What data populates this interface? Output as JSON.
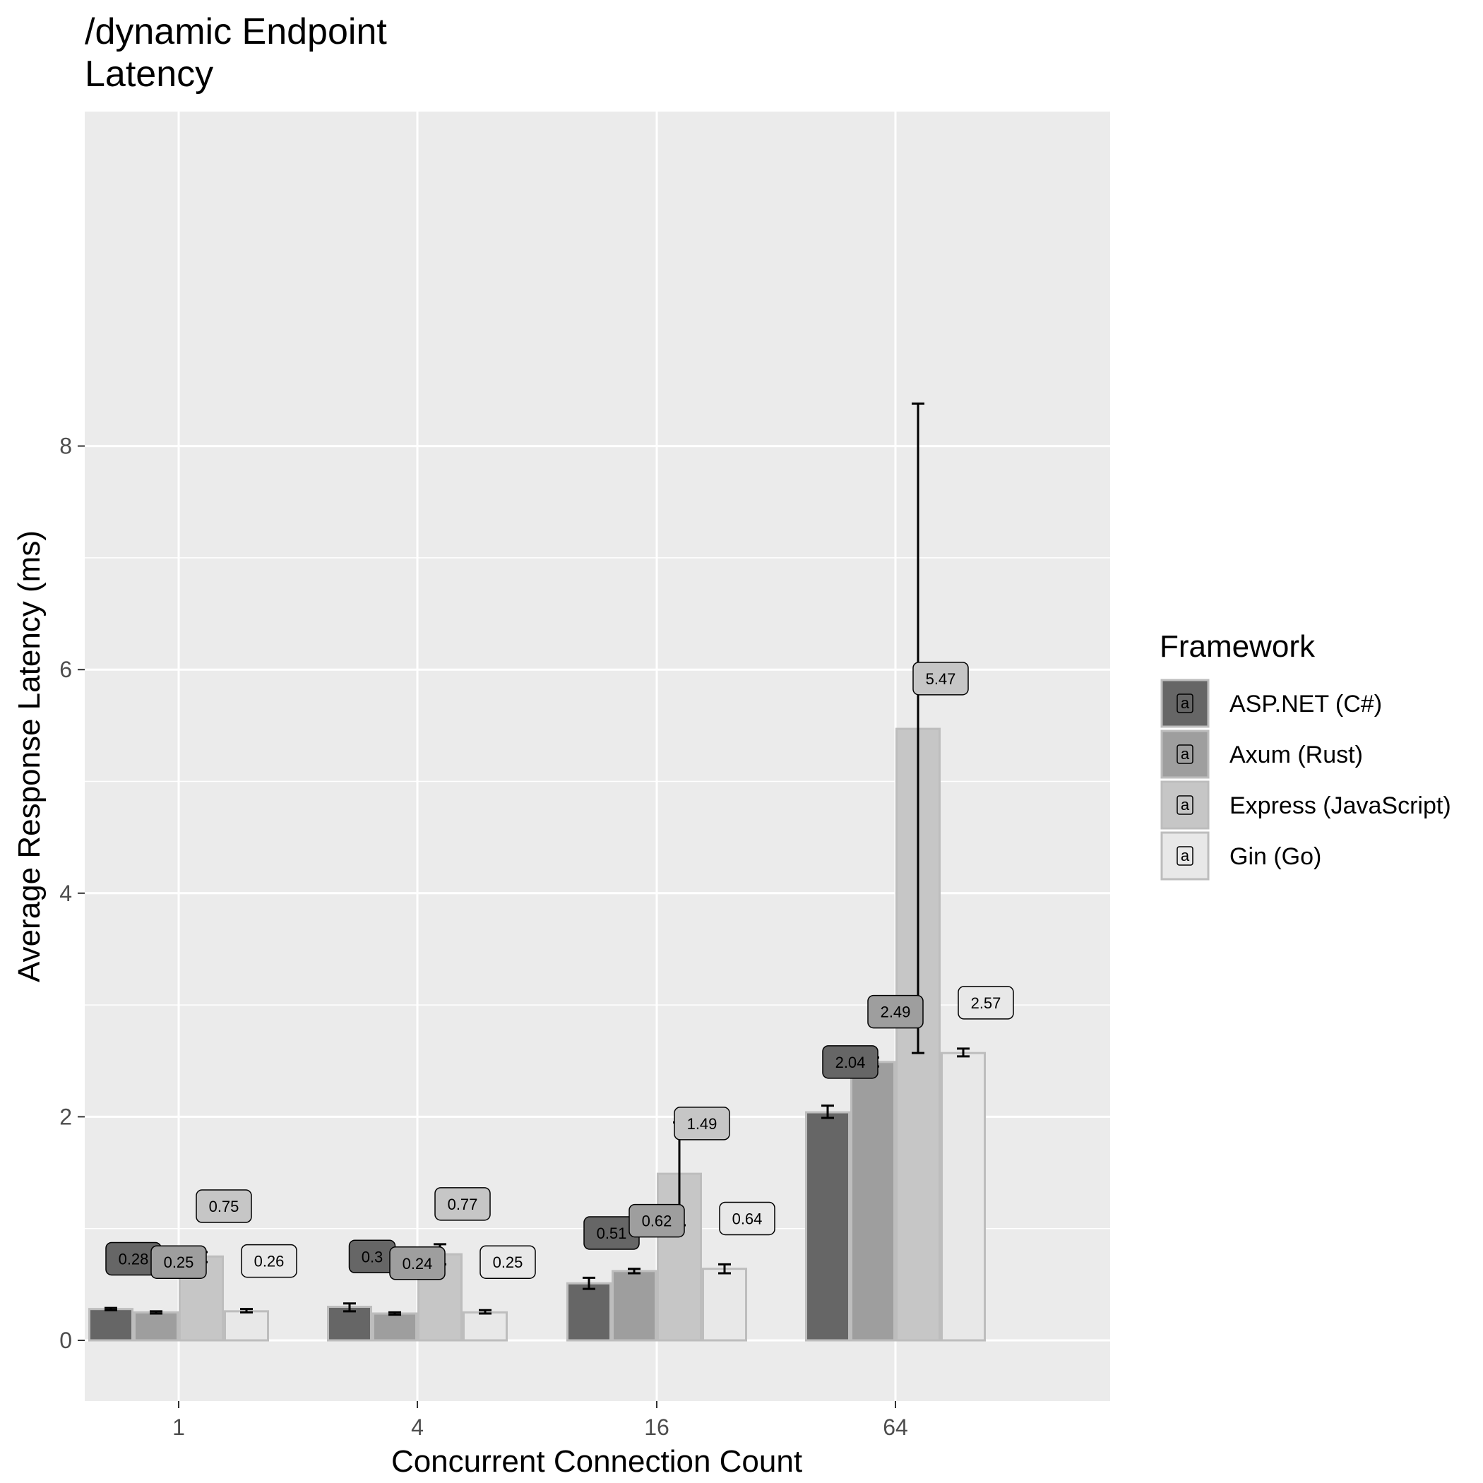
{
  "chart_data": {
    "type": "bar",
    "title_lines": [
      "/dynamic Endpoint",
      "Latency"
    ],
    "xlabel": "Concurrent Connection Count",
    "ylabel": "Average Response Latency (ms)",
    "categories": [
      "1",
      "4",
      "16",
      "64"
    ],
    "ylim": [
      -0.4,
      8.8
    ],
    "yticks": [
      0,
      2,
      4,
      6,
      8
    ],
    "grid": true,
    "legend": {
      "title": "Framework",
      "position": "right",
      "key_glyph": "a"
    },
    "series": [
      {
        "name": "ASP.NET (C#)",
        "color": "#666666",
        "values": [
          0.28,
          0.3,
          0.51,
          2.04
        ],
        "err_low": [
          0.27,
          0.26,
          0.46,
          1.99
        ],
        "err_high": [
          0.29,
          0.33,
          0.56,
          2.1
        ],
        "labels": [
          "0.28",
          "0.3",
          "0.51",
          "2.04"
        ]
      },
      {
        "name": "Axum (Rust)",
        "color": "#9e9e9e",
        "values": [
          0.25,
          0.24,
          0.62,
          2.49
        ],
        "err_low": [
          0.24,
          0.23,
          0.6,
          2.45
        ],
        "err_high": [
          0.26,
          0.25,
          0.64,
          2.53
        ],
        "labels": [
          "0.25",
          "0.24",
          "0.62",
          "2.49"
        ]
      },
      {
        "name": "Express (JavaScript)",
        "color": "#c6c6c6",
        "values": [
          0.75,
          0.77,
          1.49,
          5.47
        ],
        "err_low": [
          0.7,
          0.68,
          1.03,
          2.57
        ],
        "err_high": [
          0.79,
          0.86,
          1.95,
          8.38
        ],
        "labels": [
          "0.75",
          "0.77",
          "1.49",
          "5.47"
        ]
      },
      {
        "name": "Gin (Go)",
        "color": "#e8e8e8",
        "values": [
          0.26,
          0.25,
          0.64,
          2.57
        ],
        "err_low": [
          0.25,
          0.24,
          0.6,
          2.54
        ],
        "err_high": [
          0.28,
          0.27,
          0.68,
          2.61
        ],
        "labels": [
          "0.26",
          "0.25",
          "0.64",
          "2.57"
        ]
      }
    ]
  }
}
